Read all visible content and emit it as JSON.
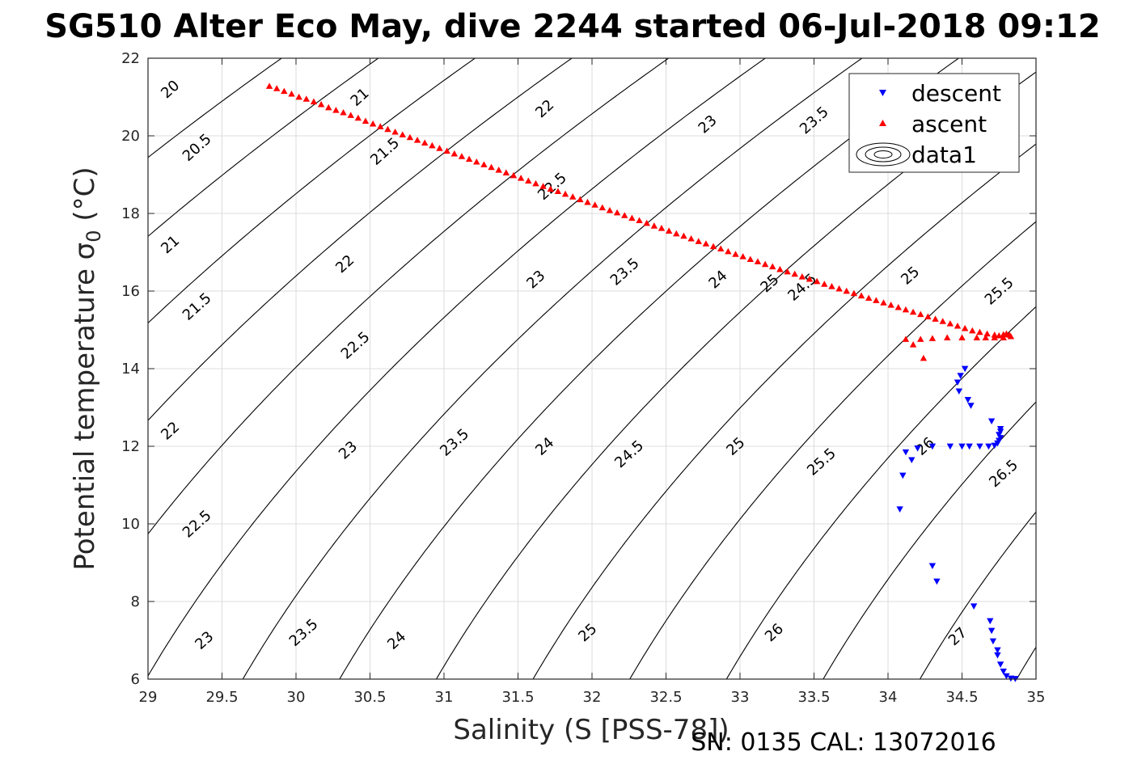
{
  "chart_data": {
    "type": "scatter",
    "title": "SG510 Alter Eco May, dive 2244 started 06-Jul-2018 09:12",
    "xlabel": "Salinity (S [PSS-78])",
    "ylabel_main": "Potential temperature σ",
    "ylabel_sub": "0",
    "ylabel_unit": " (°C)",
    "footer": "SN: 0135  CAL: 13072016",
    "xlim": [
      29,
      35
    ],
    "ylim": [
      6,
      22
    ],
    "x_ticks": [
      "29",
      "29.5",
      "30",
      "30.5",
      "31",
      "31.5",
      "32",
      "32.5",
      "33",
      "33.5",
      "34",
      "34.5",
      "35"
    ],
    "y_ticks": [
      "6",
      "8",
      "10",
      "12",
      "14",
      "16",
      "18",
      "20",
      "22"
    ],
    "grid": true,
    "legend_position": "top-right",
    "legend": [
      "descent",
      "ascent",
      "data1"
    ],
    "colors": {
      "descent": "#0000ff",
      "ascent": "#ff0000",
      "contour": "#000000",
      "grid": "#dcdcdc"
    },
    "contour_levels": [
      20,
      20.5,
      21,
      21.5,
      22,
      22.5,
      23,
      23.5,
      24,
      24.5,
      25,
      25.5,
      26,
      26.5,
      27
    ],
    "contour_labels": [
      {
        "text": "20",
        "x": 29.15,
        "y": 21.2
      },
      {
        "text": "20.5",
        "x": 29.33,
        "y": 19.7
      },
      {
        "text": "21",
        "x": 29.15,
        "y": 17.2
      },
      {
        "text": "21.5",
        "x": 29.33,
        "y": 15.6
      },
      {
        "text": "22",
        "x": 29.15,
        "y": 12.4
      },
      {
        "text": "22.5",
        "x": 29.33,
        "y": 10.0
      },
      {
        "text": "23",
        "x": 29.38,
        "y": 7.0
      },
      {
        "text": "21",
        "x": 30.43,
        "y": 21.0
      },
      {
        "text": "21.5",
        "x": 30.6,
        "y": 19.6
      },
      {
        "text": "22",
        "x": 30.33,
        "y": 16.7
      },
      {
        "text": "22.5",
        "x": 30.4,
        "y": 14.6
      },
      {
        "text": "23",
        "x": 30.35,
        "y": 11.9
      },
      {
        "text": "23.5",
        "x": 30.05,
        "y": 7.2
      },
      {
        "text": "22",
        "x": 31.68,
        "y": 20.7
      },
      {
        "text": "22.5",
        "x": 31.73,
        "y": 18.7
      },
      {
        "text": "23",
        "x": 31.62,
        "y": 16.3
      },
      {
        "text": "23.5",
        "x": 31.07,
        "y": 12.1
      },
      {
        "text": "24",
        "x": 30.68,
        "y": 7.0
      },
      {
        "text": "23",
        "x": 32.78,
        "y": 20.3
      },
      {
        "text": "23.5",
        "x": 32.22,
        "y": 16.5
      },
      {
        "text": "24",
        "x": 31.68,
        "y": 12.0
      },
      {
        "text": "25",
        "x": 31.97,
        "y": 7.2
      },
      {
        "text": "23.5",
        "x": 33.5,
        "y": 20.4
      },
      {
        "text": "24",
        "x": 32.85,
        "y": 16.3
      },
      {
        "text": "24.5",
        "x": 32.25,
        "y": 11.8
      },
      {
        "text": "25",
        "x": 33.2,
        "y": 16.2
      },
      {
        "text": "25",
        "x": 32.97,
        "y": 12.0
      },
      {
        "text": "26",
        "x": 33.23,
        "y": 7.2
      },
      {
        "text": "25",
        "x": 34.15,
        "y": 16.4
      },
      {
        "text": "25.5",
        "x": 33.55,
        "y": 11.6
      },
      {
        "text": "24.5",
        "x": 33.42,
        "y": 16.1
      },
      {
        "text": "25.5",
        "x": 34.75,
        "y": 16.0
      },
      {
        "text": "26",
        "x": 34.25,
        "y": 12.0
      },
      {
        "text": "26.5",
        "x": 34.78,
        "y": 11.3
      },
      {
        "text": "27",
        "x": 34.47,
        "y": 7.1
      }
    ],
    "ascent": [
      [
        29.82,
        21.28
      ],
      [
        29.87,
        21.22
      ],
      [
        29.92,
        21.15
      ],
      [
        29.97,
        21.08
      ],
      [
        30.02,
        21.0
      ],
      [
        30.07,
        20.95
      ],
      [
        30.12,
        20.88
      ],
      [
        30.17,
        20.81
      ],
      [
        30.22,
        20.73
      ],
      [
        30.27,
        20.66
      ],
      [
        30.32,
        20.6
      ],
      [
        30.37,
        20.53
      ],
      [
        30.42,
        20.46
      ],
      [
        30.47,
        20.38
      ],
      [
        30.52,
        20.31
      ],
      [
        30.57,
        20.24
      ],
      [
        30.62,
        20.17
      ],
      [
        30.67,
        20.1
      ],
      [
        30.72,
        20.03
      ],
      [
        30.77,
        19.96
      ],
      [
        30.82,
        19.89
      ],
      [
        30.87,
        19.82
      ],
      [
        30.92,
        19.75
      ],
      [
        30.97,
        19.68
      ],
      [
        31.02,
        19.61
      ],
      [
        31.07,
        19.54
      ],
      [
        31.12,
        19.47
      ],
      [
        31.17,
        19.4
      ],
      [
        31.22,
        19.33
      ],
      [
        31.27,
        19.26
      ],
      [
        31.32,
        19.19
      ],
      [
        31.37,
        19.12
      ],
      [
        31.42,
        19.05
      ],
      [
        31.47,
        18.98
      ],
      [
        31.52,
        18.91
      ],
      [
        31.57,
        18.84
      ],
      [
        31.62,
        18.77
      ],
      [
        31.67,
        18.7
      ],
      [
        31.72,
        18.63
      ],
      [
        31.77,
        18.57
      ],
      [
        31.82,
        18.5
      ],
      [
        31.87,
        18.43
      ],
      [
        31.92,
        18.36
      ],
      [
        31.97,
        18.29
      ],
      [
        32.02,
        18.22
      ],
      [
        32.07,
        18.15
      ],
      [
        32.12,
        18.08
      ],
      [
        32.17,
        18.02
      ],
      [
        32.22,
        17.95
      ],
      [
        32.27,
        17.88
      ],
      [
        32.32,
        17.82
      ],
      [
        32.37,
        17.75
      ],
      [
        32.42,
        17.68
      ],
      [
        32.47,
        17.62
      ],
      [
        32.52,
        17.55
      ],
      [
        32.57,
        17.48
      ],
      [
        32.62,
        17.42
      ],
      [
        32.67,
        17.35
      ],
      [
        32.72,
        17.28
      ],
      [
        32.77,
        17.22
      ],
      [
        32.82,
        17.15
      ],
      [
        32.87,
        17.09
      ],
      [
        32.92,
        17.02
      ],
      [
        32.97,
        16.95
      ],
      [
        33.02,
        16.89
      ],
      [
        33.07,
        16.82
      ],
      [
        33.12,
        16.76
      ],
      [
        33.17,
        16.69
      ],
      [
        33.22,
        16.63
      ],
      [
        33.27,
        16.56
      ],
      [
        33.32,
        16.5
      ],
      [
        33.37,
        16.44
      ],
      [
        33.42,
        16.37
      ],
      [
        33.47,
        16.31
      ],
      [
        33.52,
        16.25
      ],
      [
        33.57,
        16.18
      ],
      [
        33.62,
        16.12
      ],
      [
        33.67,
        16.06
      ],
      [
        33.72,
        16.0
      ],
      [
        33.77,
        15.94
      ],
      [
        33.82,
        15.88
      ],
      [
        33.87,
        15.82
      ],
      [
        33.92,
        15.76
      ],
      [
        33.97,
        15.7
      ],
      [
        34.02,
        15.64
      ],
      [
        34.07,
        15.58
      ],
      [
        34.12,
        15.52
      ],
      [
        34.17,
        15.46
      ],
      [
        34.22,
        15.4
      ],
      [
        34.27,
        15.34
      ],
      [
        34.32,
        15.28
      ],
      [
        34.37,
        15.22
      ],
      [
        34.42,
        15.16
      ],
      [
        34.47,
        15.1
      ],
      [
        34.52,
        15.04
      ],
      [
        34.57,
        14.98
      ],
      [
        34.62,
        14.94
      ],
      [
        34.67,
        14.9
      ],
      [
        34.72,
        14.87
      ],
      [
        34.75,
        14.85
      ],
      [
        34.78,
        14.88
      ],
      [
        34.8,
        14.9
      ],
      [
        34.82,
        14.87
      ],
      [
        34.83,
        14.83
      ],
      [
        34.78,
        14.8
      ],
      [
        34.72,
        14.8
      ],
      [
        34.66,
        14.8
      ],
      [
        34.6,
        14.8
      ],
      [
        34.5,
        14.8
      ],
      [
        34.4,
        14.8
      ],
      [
        34.3,
        14.78
      ],
      [
        34.22,
        14.76
      ],
      [
        34.12,
        14.76
      ],
      [
        34.17,
        14.62
      ],
      [
        34.24,
        14.27
      ]
    ],
    "descent": [
      [
        34.52,
        14.0
      ],
      [
        34.49,
        13.82
      ],
      [
        34.47,
        13.65
      ],
      [
        34.48,
        13.42
      ],
      [
        34.54,
        13.2
      ],
      [
        34.56,
        13.05
      ],
      [
        34.7,
        12.65
      ],
      [
        34.76,
        12.45
      ],
      [
        34.76,
        12.38
      ],
      [
        34.75,
        12.3
      ],
      [
        34.76,
        12.22
      ],
      [
        34.75,
        12.15
      ],
      [
        34.74,
        12.08
      ],
      [
        34.72,
        12.02
      ],
      [
        34.68,
        12.0
      ],
      [
        34.62,
        12.0
      ],
      [
        34.55,
        12.0
      ],
      [
        34.5,
        12.0
      ],
      [
        34.42,
        12.0
      ],
      [
        34.3,
        12.0
      ],
      [
        34.2,
        11.95
      ],
      [
        34.12,
        11.85
      ],
      [
        34.16,
        11.65
      ],
      [
        34.1,
        11.25
      ],
      [
        34.08,
        10.38
      ],
      [
        34.3,
        8.92
      ],
      [
        34.33,
        8.52
      ],
      [
        34.58,
        7.88
      ],
      [
        34.69,
        7.5
      ],
      [
        34.7,
        7.25
      ],
      [
        34.71,
        6.98
      ],
      [
        34.74,
        6.75
      ],
      [
        34.74,
        6.62
      ],
      [
        34.76,
        6.38
      ],
      [
        34.78,
        6.2
      ],
      [
        34.8,
        6.08
      ],
      [
        34.83,
        6.02
      ],
      [
        34.86,
        6.01
      ]
    ]
  }
}
